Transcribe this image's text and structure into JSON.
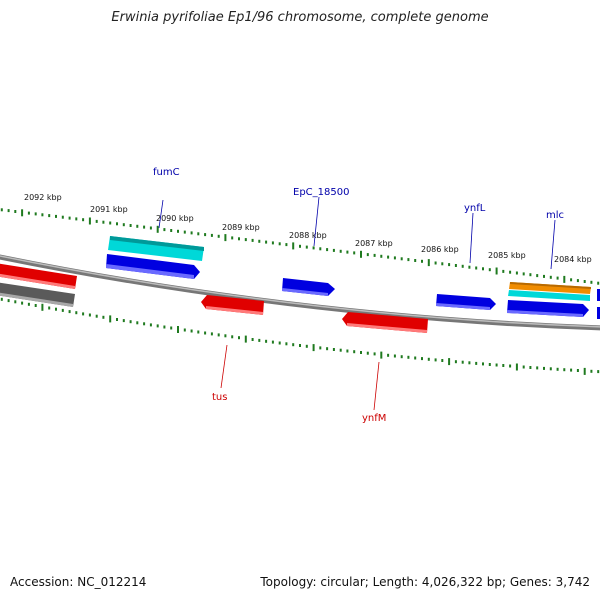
{
  "title": "Erwinia pyrifoliae Ep1/96 chromosome, complete genome",
  "footer": {
    "accession": "Accession: NC_012214",
    "topology": "Topology: circular; Length: 4,026,322 bp; Genes: 3,742"
  },
  "colors": {
    "backbone": "#8c8c8c",
    "ticks": "#1f7a1f",
    "forward_gene": "#0000e6",
    "reverse_gene": "#e60000",
    "rna": "#00d4d4",
    "orange": "#f08c00",
    "pseudo": "#6a6a6a",
    "label_forward": "#0000aa",
    "label_reverse": "#cc0000"
  },
  "kbp_labels": [
    "2092 kbp",
    "2091 kbp",
    "2090 kbp",
    "2089 kbp",
    "2088 kbp",
    "2087 kbp",
    "2086 kbp",
    "2085 kbp",
    "2084 kbp"
  ],
  "gene_labels": {
    "forward": [
      "fumC",
      "EpC_18500",
      "ynfL",
      "mlc"
    ],
    "reverse": [
      "tus",
      "ynfM"
    ]
  }
}
